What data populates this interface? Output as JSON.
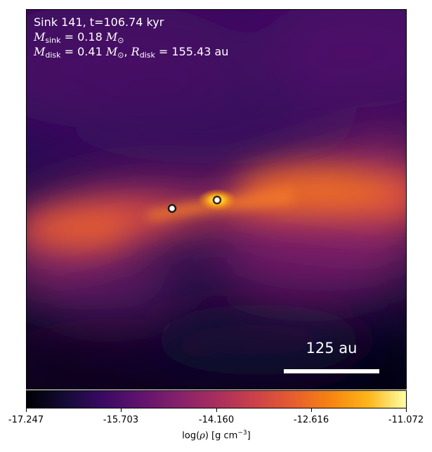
{
  "header": {
    "sink_line": "Sink 141, t=106.74 kyr",
    "msink_symbol": "M",
    "msink_sub": "sink",
    "msink_value": "= 0.18",
    "msun_symbol": "M",
    "msun_sub": "⊙",
    "mdisk_symbol": "M",
    "mdisk_sub": "disk",
    "mdisk_value": "= 0.41",
    "mdisk_sun_symbol": "M",
    "mdisk_sun_sub": "⊙",
    "separator": ",",
    "rdisk_symbol": "R",
    "rdisk_sub": "disk",
    "rdisk_value": "= 155.43 au"
  },
  "scale_bar": {
    "label": "125 au"
  },
  "colorbar": {
    "colormap": "inferno",
    "ticks": [
      "-17.247",
      "-15.703",
      "-14.160",
      "-12.616",
      "-11.072"
    ],
    "label_prefix": "log(",
    "label_rho": "ρ",
    "label_mid": ") [g cm",
    "label_exp": "−3",
    "label_suffix": "]"
  },
  "sinks": [
    {
      "name": "sink-left"
    },
    {
      "name": "sink-right"
    }
  ]
}
